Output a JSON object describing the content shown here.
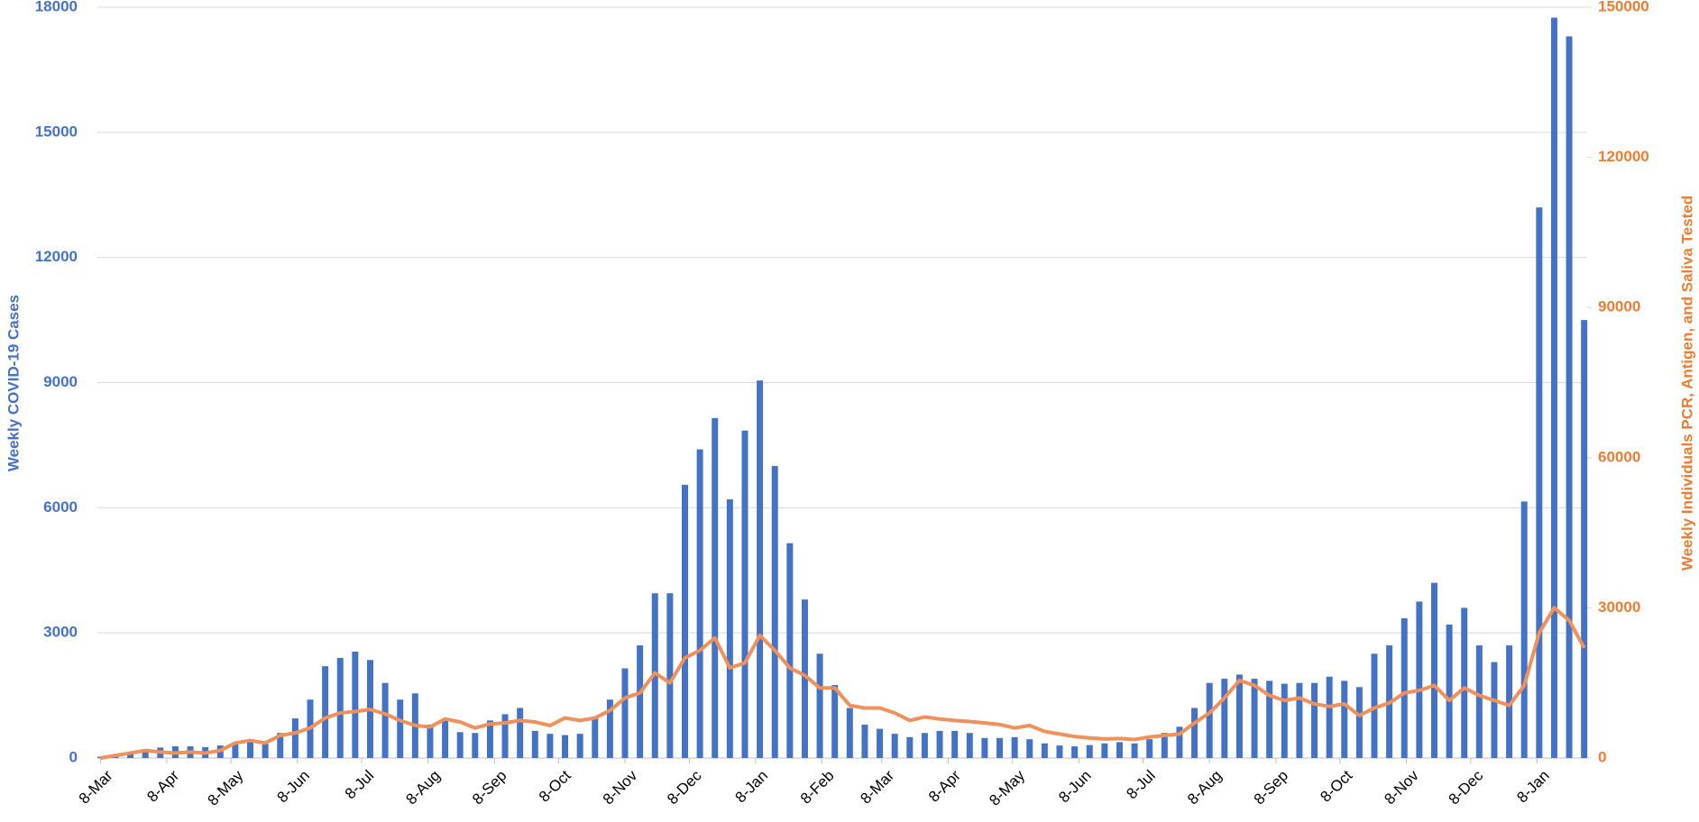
{
  "chart_data": {
    "type": "bar-line",
    "y_label": "Weekly COVID-19 Cases",
    "y2_label": "Weekly Individuals PCR, Antigen, and Saliva Tested",
    "xlim": [
      -0.2,
      99.2
    ],
    "xticks": [
      {
        "value": 0,
        "label": "8-Mar"
      },
      {
        "value": 4.43,
        "label": "8-Apr"
      },
      {
        "value": 8.71,
        "label": "8-May"
      },
      {
        "value": 13.14,
        "label": "8-Jun"
      },
      {
        "value": 17.43,
        "label": "8-Jul"
      },
      {
        "value": 21.86,
        "label": "8-Aug"
      },
      {
        "value": 26.29,
        "label": "8-Sep"
      },
      {
        "value": 30.57,
        "label": "8-Oct"
      },
      {
        "value": 35,
        "label": "8-Nov"
      },
      {
        "value": 39.29,
        "label": "8-Dec"
      },
      {
        "value": 43.71,
        "label": "8-Jan"
      },
      {
        "value": 48.14,
        "label": "8-Feb"
      },
      {
        "value": 52.14,
        "label": "8-Mar"
      },
      {
        "value": 56.57,
        "label": "8-Apr"
      },
      {
        "value": 60.86,
        "label": "8-May"
      },
      {
        "value": 65.29,
        "label": "8-Jun"
      },
      {
        "value": 69.57,
        "label": "8-Jul"
      },
      {
        "value": 74,
        "label": "8-Aug"
      },
      {
        "value": 78.43,
        "label": "8-Sep"
      },
      {
        "value": 82.71,
        "label": "8-Oct"
      },
      {
        "value": 87.14,
        "label": "8-Nov"
      },
      {
        "value": 91.43,
        "label": "8-Dec"
      },
      {
        "value": 95.86,
        "label": "8-Jan"
      }
    ],
    "ylim": [
      0,
      18000
    ],
    "yticks": [
      0,
      3000,
      6000,
      9000,
      12000,
      15000,
      18000
    ],
    "y2lim": [
      0,
      150000
    ],
    "y2ticks": [
      0,
      30000,
      60000,
      90000,
      120000,
      150000
    ],
    "grid": true,
    "series": [
      {
        "kind": "bar",
        "color": "#4472c4",
        "values": [
          30,
          50,
          100,
          200,
          250,
          280,
          280,
          260,
          300,
          350,
          400,
          400,
          600,
          950,
          1400,
          2200,
          2400,
          2550,
          2350,
          1800,
          1400,
          1550,
          800,
          950,
          620,
          600,
          900,
          1050,
          1200,
          650,
          580,
          550,
          580,
          950,
          1400,
          2150,
          2700,
          3950,
          3950,
          6550,
          7400,
          8150,
          6200,
          7850,
          9050,
          7000,
          5150,
          3800,
          2500,
          1750,
          1200,
          800,
          700,
          580,
          500,
          600,
          650,
          650,
          600,
          480,
          480,
          500,
          450,
          350,
          300,
          280,
          310,
          350,
          380,
          350,
          450,
          600,
          750,
          1200,
          1800,
          1900,
          2000,
          1900,
          1850,
          1780,
          1800,
          1800,
          1950,
          1850,
          1700,
          2500,
          2700,
          3350,
          3750,
          4200,
          3200,
          3600,
          2700,
          2300,
          2700,
          6150,
          13200,
          17750,
          17300,
          10500
        ]
      },
      {
        "kind": "line",
        "axis": "y2",
        "color": "#f0905a",
        "values": [
          0,
          500,
          1000,
          1500,
          1200,
          1000,
          1200,
          1000,
          1500,
          3000,
          3500,
          3000,
          4500,
          5000,
          6000,
          8000,
          9000,
          9300,
          9700,
          8800,
          7500,
          6500,
          6200,
          7800,
          7200,
          6000,
          6800,
          7000,
          7500,
          7200,
          6500,
          8000,
          7500,
          8000,
          9500,
          12000,
          13000,
          17000,
          15000,
          20000,
          21500,
          24000,
          18000,
          19000,
          24500,
          21500,
          18000,
          16500,
          14000,
          14000,
          10500,
          10000,
          10000,
          9000,
          7500,
          8200,
          7800,
          7500,
          7300,
          7000,
          6700,
          6000,
          6500,
          5300,
          4800,
          4300,
          4000,
          3800,
          3900,
          3700,
          4200,
          4500,
          4800,
          7000,
          9000,
          12000,
          15500,
          14500,
          12500,
          11500,
          12000,
          10800,
          10300,
          10800,
          8500,
          10000,
          11000,
          13000,
          13500,
          14500,
          11500,
          14000,
          12500,
          11500,
          10500,
          14500,
          25000,
          30000,
          27500,
          22000
        ]
      }
    ]
  }
}
